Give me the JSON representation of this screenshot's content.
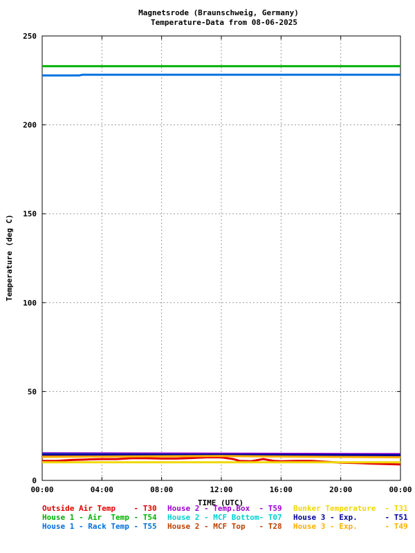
{
  "chart_data": {
    "type": "line",
    "title": "Magnetsrode (Braunschweig, Germany)",
    "subtitle": "Temperature-Data from 08-06-2025",
    "xlabel": "TIME (UTC)",
    "ylabel": "Temperature (deg C)",
    "ylim": [
      0,
      250
    ],
    "yticks": [
      "0",
      "50",
      "100",
      "150",
      "200",
      "250"
    ],
    "xlim": [
      0,
      24
    ],
    "xticks": [
      "00:00",
      "04:00",
      "08:00",
      "12:00",
      "16:00",
      "20:00",
      "00:00"
    ],
    "grid": true,
    "legend_position": "bottom",
    "series": [
      {
        "name": "Outside Air Temp",
        "code": "T30",
        "color": "#e00000",
        "x": [
          0,
          1,
          2,
          3,
          4,
          5,
          6,
          7,
          8,
          9,
          10,
          11,
          12,
          12.8,
          13.2,
          14,
          14.8,
          15.5,
          16,
          17,
          18,
          19,
          20,
          21,
          22,
          23,
          24
        ],
        "y": [
          11,
          11,
          11.5,
          11.8,
          12,
          12,
          12.5,
          12.5,
          12.3,
          12.3,
          12.6,
          13,
          13,
          12,
          11,
          10.8,
          12,
          11,
          10.8,
          11,
          11,
          10.5,
          10,
          9.8,
          9.5,
          9.2,
          9
        ]
      },
      {
        "name": "House 1 - Air  Temp",
        "code": "T54",
        "color": "#00b000",
        "x": [
          0,
          24
        ],
        "y": [
          233,
          233
        ]
      },
      {
        "name": "House 1 - Rack Temp",
        "code": "T55",
        "color": "#0070e0",
        "x": [
          0,
          2.5,
          2.7,
          24
        ],
        "y": [
          227.8,
          227.8,
          228.2,
          228.2
        ]
      },
      {
        "name": "House 2 - Temp.Box",
        "code": "T59",
        "color": "#a000d0",
        "x": [
          0,
          24
        ],
        "y": [
          15.3,
          14.8
        ]
      },
      {
        "name": "House 2 - MCF Bottom",
        "code": "T07",
        "color": "#00d0d0",
        "x": [
          0,
          24
        ],
        "y": [
          14.8,
          14.2
        ]
      },
      {
        "name": "House 2 - MCF Top",
        "code": "T28",
        "color": "#c04000",
        "x": [
          0,
          24
        ],
        "y": [
          14.2,
          13.8
        ]
      },
      {
        "name": "Bunker Temperature",
        "code": "T31",
        "color": "#f0d800",
        "x": [
          0,
          24
        ],
        "y": [
          10.2,
          10.2
        ]
      },
      {
        "name": "House 3 - Exp.",
        "code": "T51",
        "color": "#0000a0",
        "x": [
          0,
          24
        ],
        "y": [
          14.6,
          14.3
        ]
      },
      {
        "name": "House 3 - Exp.",
        "code": "T49",
        "color": "#ffb000",
        "x": [
          0,
          6,
          12,
          18,
          24
        ],
        "y": [
          13.2,
          13.5,
          13.7,
          13.3,
          13
        ]
      }
    ]
  },
  "legend": [
    {
      "text": "Outside Air Temp    - T30",
      "color": "#e00000"
    },
    {
      "text": "House 2 - Temp.Box  - T59",
      "color": "#a000d0"
    },
    {
      "text": "Bunker Temperature  - T31",
      "color": "#f0d800"
    },
    {
      "text": "House 1 - Air  Temp - T54",
      "color": "#00b000"
    },
    {
      "text": "House 2 - MCF Bottom- T07",
      "color": "#00d0d0"
    },
    {
      "text": "House 3 - Exp.      - T51",
      "color": "#0000a0"
    },
    {
      "text": "House 1 - Rack Temp - T55",
      "color": "#0070e0"
    },
    {
      "text": "House 2 - MCF Top   - T28",
      "color": "#c04000"
    },
    {
      "text": "House 3 - Exp.      - T49",
      "color": "#ffb000"
    }
  ]
}
